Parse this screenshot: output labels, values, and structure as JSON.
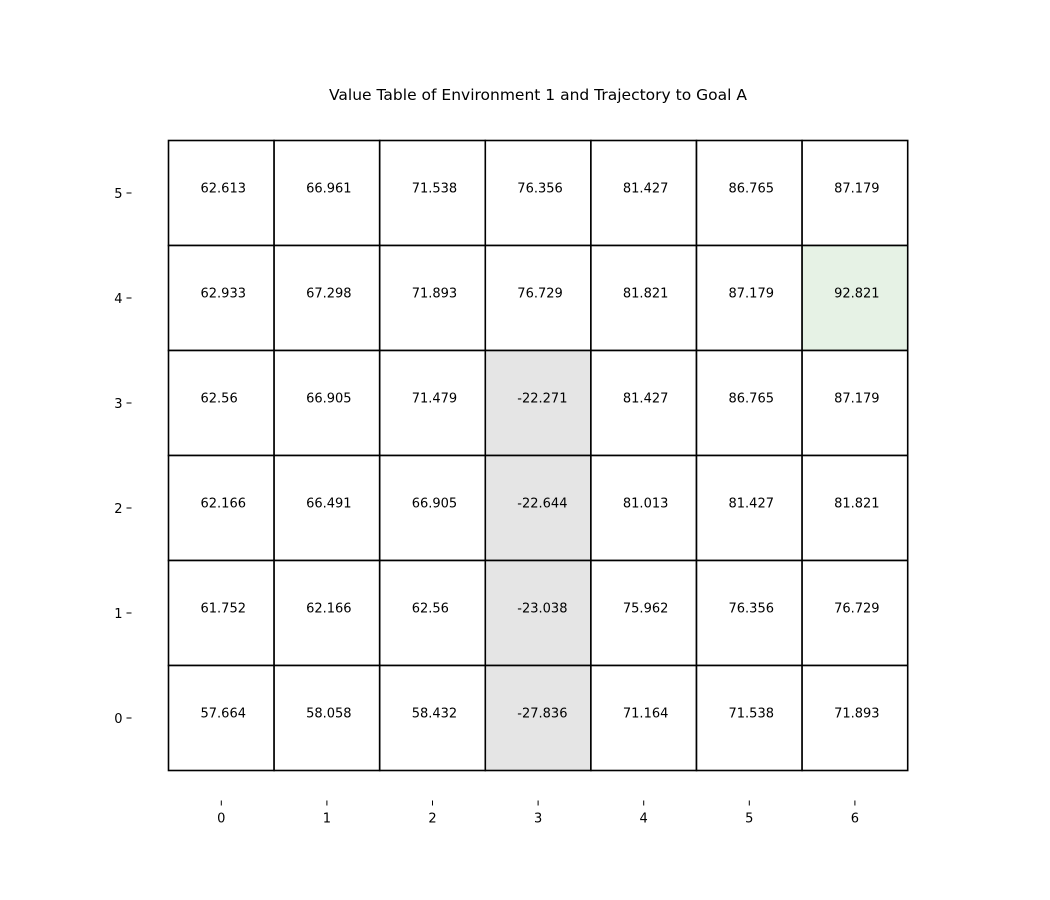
{
  "chart_data": {
    "type": "heatmap",
    "title": "Value Table of Environment 1 and Trajectory to Goal A",
    "xlabel": "",
    "ylabel": "",
    "x_ticks": [
      "0",
      "1",
      "2",
      "3",
      "4",
      "5",
      "6"
    ],
    "y_ticks": [
      "0",
      "1",
      "2",
      "3",
      "4",
      "5"
    ],
    "rows": [
      {
        "y": 5,
        "labels": [
          "62.613",
          "66.961",
          "71.538",
          "76.356",
          "81.427",
          "86.765",
          "87.179"
        ]
      },
      {
        "y": 4,
        "labels": [
          "62.933",
          "67.298",
          "71.893",
          "76.729",
          "81.821",
          "87.179",
          "92.821"
        ]
      },
      {
        "y": 3,
        "labels": [
          "62.56",
          "66.905",
          "71.479",
          "-22.271",
          "81.427",
          "86.765",
          "87.179"
        ]
      },
      {
        "y": 2,
        "labels": [
          "62.166",
          "66.491",
          "66.905",
          "-22.644",
          "81.013",
          "81.427",
          "81.821"
        ]
      },
      {
        "y": 1,
        "labels": [
          "61.752",
          "62.166",
          "62.56",
          "-23.038",
          "75.962",
          "76.356",
          "76.729"
        ]
      },
      {
        "y": 0,
        "labels": [
          "57.664",
          "58.058",
          "58.432",
          "-27.836",
          "71.164",
          "71.538",
          "71.893"
        ]
      }
    ],
    "highlighted_cells": [
      {
        "x": 3,
        "y": 3,
        "color": "#e5e5e5"
      },
      {
        "x": 3,
        "y": 2,
        "color": "#e5e5e5"
      },
      {
        "x": 3,
        "y": 1,
        "color": "#e5e5e5"
      },
      {
        "x": 3,
        "y": 0,
        "color": "#e5e5e5"
      },
      {
        "x": 6,
        "y": 4,
        "color": "#e6f2e5"
      }
    ],
    "default_cell_color": "#ffffff",
    "grid_color": "#000000",
    "grid": true,
    "legend": "none"
  }
}
